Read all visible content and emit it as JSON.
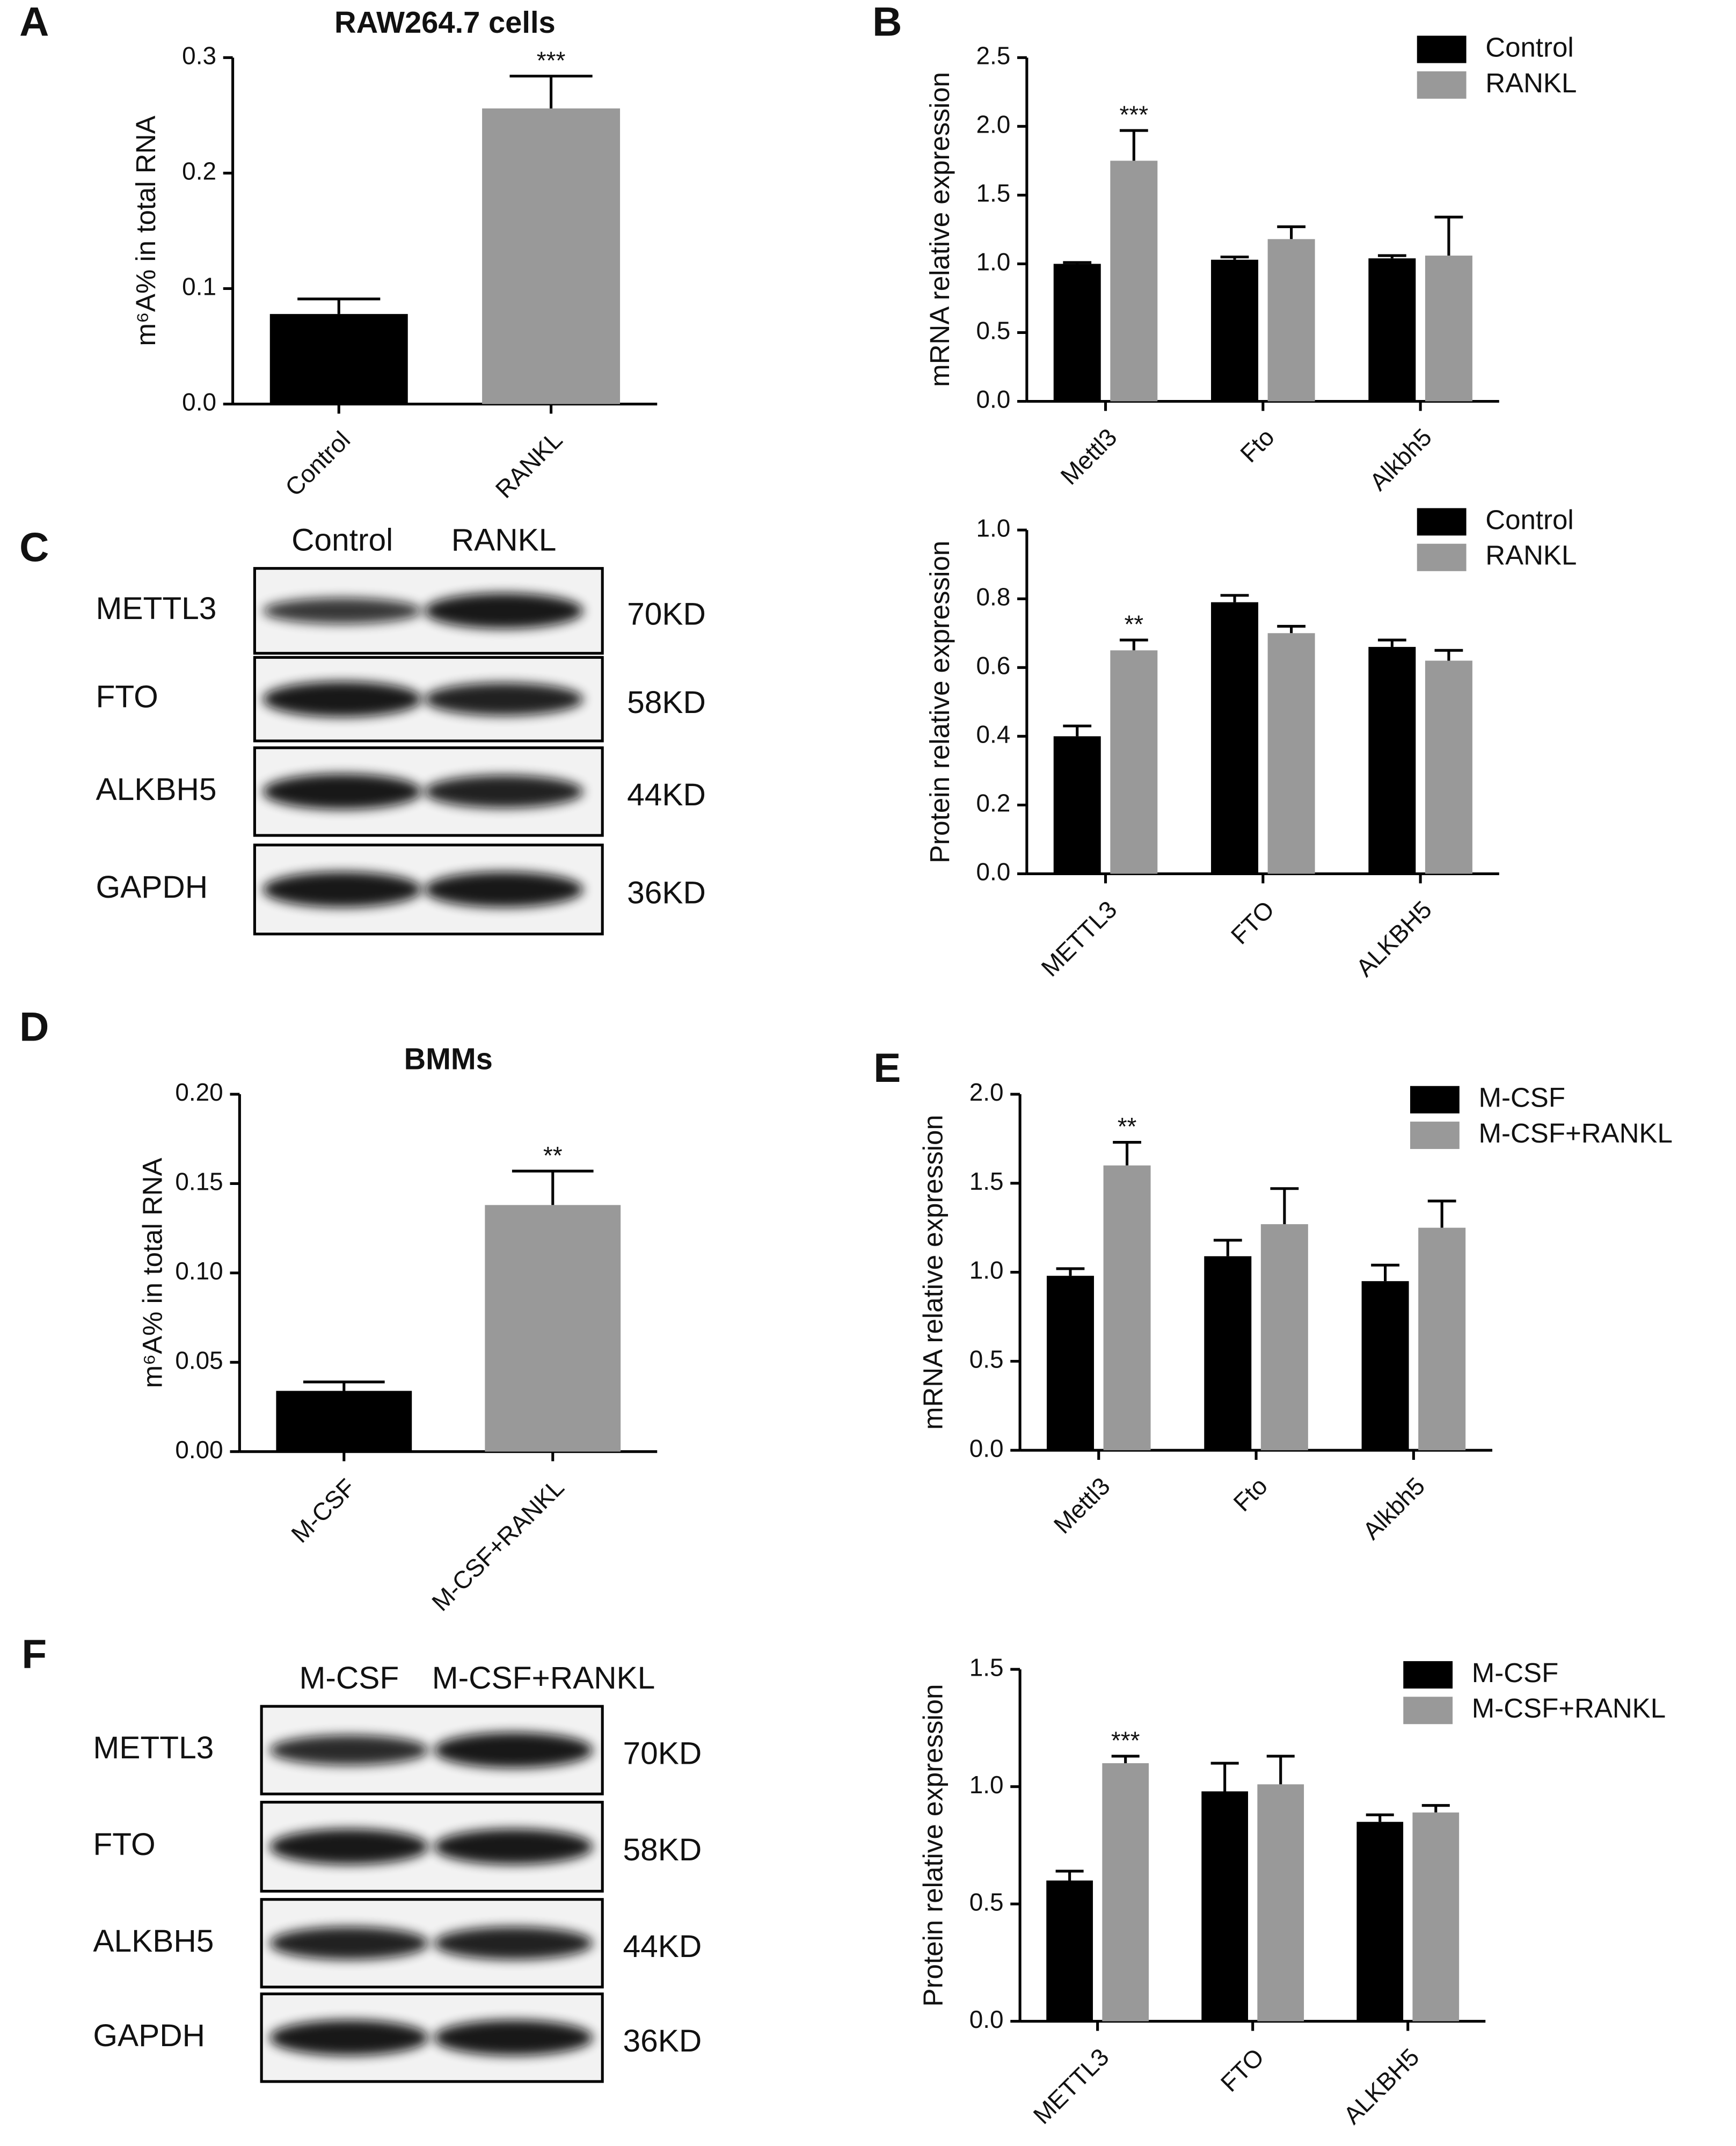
{
  "panels": [
    "A",
    "B",
    "C",
    "D",
    "E",
    "F"
  ],
  "chart_data": [
    {
      "type": "bar",
      "title": "RAW264.7 cells",
      "y_label": "m⁶A% in total RNA",
      "categories": [
        "Control",
        "RANKL"
      ],
      "series": [
        {
          "name": "RAW264.7 cells",
          "colors": [
            "#000000",
            "#999999"
          ],
          "values": [
            0.078,
            0.256
          ],
          "errors": [
            0.013,
            0.028
          ],
          "significance": [
            null,
            "***"
          ]
        }
      ],
      "ylim": [
        0,
        0.3
      ],
      "yticks": [
        {
          "value": 0,
          "label": "0.0"
        },
        0.1,
        0.2,
        0.3
      ],
      "legend": false
    },
    {
      "type": "bar",
      "y_label": "mRNA relative expression",
      "categories": [
        "Mettl3",
        "Fto",
        "Alkbh5"
      ],
      "series": [
        {
          "name": "Control",
          "color": "#000000",
          "values": [
            1.0,
            1.03,
            1.04
          ],
          "errors": [
            0.01,
            0.02,
            0.02
          ],
          "significance": [
            null,
            null,
            null
          ]
        },
        {
          "name": "RANKL",
          "color": "#999999",
          "values": [
            1.75,
            1.18,
            1.06
          ],
          "errors": [
            0.22,
            0.09,
            0.28
          ],
          "significance": [
            "***",
            null,
            null
          ]
        }
      ],
      "ylim": [
        0,
        2.5
      ],
      "yticks": [
        {
          "value": 0,
          "label": "0.0"
        },
        0.5,
        {
          "value": 1,
          "label": "1.0"
        },
        1.5,
        {
          "value": 2,
          "label": "2.0"
        },
        2.5
      ],
      "legend": "top-right"
    },
    {
      "type": "bar",
      "y_label": "Protein relative expression",
      "categories": [
        "METTL3",
        "FTO",
        "ALKBH5"
      ],
      "series": [
        {
          "name": "Control",
          "color": "#000000",
          "values": [
            0.4,
            0.79,
            0.66
          ],
          "errors": [
            0.03,
            0.02,
            0.02
          ],
          "significance": [
            null,
            null,
            null
          ]
        },
        {
          "name": "RANKL",
          "color": "#999999",
          "values": [
            0.65,
            0.7,
            0.62
          ],
          "errors": [
            0.03,
            0.02,
            0.03
          ],
          "significance": [
            "**",
            null,
            null
          ]
        }
      ],
      "ylim": [
        0,
        1
      ],
      "yticks": [
        {
          "value": 0,
          "label": "0.0"
        },
        0.2,
        0.4,
        0.6,
        0.8,
        {
          "value": 1,
          "label": "1.0"
        }
      ],
      "legend": "top-right"
    },
    {
      "type": "bar",
      "title": "BMMs",
      "y_label": "m⁶A% in total RNA",
      "categories": [
        "M-CSF",
        "M-CSF+RANKL"
      ],
      "series": [
        {
          "name": "BMMs",
          "colors": [
            "#000000",
            "#999999"
          ],
          "values": [
            0.034,
            0.138
          ],
          "errors": [
            0.005,
            0.019
          ],
          "significance": [
            null,
            "**"
          ]
        }
      ],
      "ylim": [
        0,
        0.2
      ],
      "yticks": [
        {
          "value": 0,
          "label": "0.00"
        },
        {
          "value": 0.05,
          "label": "0.05"
        },
        {
          "value": 0.1,
          "label": "0.10"
        },
        {
          "value": 0.15,
          "label": "0.15"
        },
        {
          "value": 0.2,
          "label": "0.20"
        }
      ],
      "legend": false
    },
    {
      "type": "bar",
      "y_label": "mRNA relative expression",
      "categories": [
        "Mettl3",
        "Fto",
        "Alkbh5"
      ],
      "series": [
        {
          "name": "M-CSF",
          "color": "#000000",
          "values": [
            0.98,
            1.09,
            0.95
          ],
          "errors": [
            0.04,
            0.09,
            0.09
          ],
          "significance": [
            null,
            null,
            null
          ]
        },
        {
          "name": "M-CSF+RANKL",
          "color": "#999999",
          "values": [
            1.6,
            1.27,
            1.25
          ],
          "errors": [
            0.13,
            0.2,
            0.15
          ],
          "significance": [
            "**",
            null,
            null
          ]
        }
      ],
      "ylim": [
        0,
        2
      ],
      "yticks": [
        {
          "value": 0,
          "label": "0.0"
        },
        0.5,
        {
          "value": 1,
          "label": "1.0"
        },
        1.5,
        {
          "value": 2,
          "label": "2.0"
        }
      ],
      "legend": "top-right"
    },
    {
      "type": "bar",
      "y_label": "Protein relative expression",
      "categories": [
        "METTL3",
        "FTO",
        "ALKBH5"
      ],
      "series": [
        {
          "name": "M-CSF",
          "color": "#000000",
          "values": [
            0.6,
            0.98,
            0.85
          ],
          "errors": [
            0.04,
            0.12,
            0.03
          ],
          "significance": [
            null,
            null,
            null
          ]
        },
        {
          "name": "M-CSF+RANKL",
          "color": "#999999",
          "values": [
            1.1,
            1.01,
            0.89
          ],
          "errors": [
            0.03,
            0.12,
            0.03
          ],
          "significance": [
            "***",
            null,
            null
          ]
        }
      ],
      "ylim": [
        0,
        1.5
      ],
      "yticks": [
        {
          "value": 0,
          "label": "0.0"
        },
        0.5,
        {
          "value": 1,
          "label": "1.0"
        },
        1.5
      ],
      "legend": "top-right"
    }
  ],
  "blots": [
    {
      "columns": [
        "Control",
        "RANKL"
      ],
      "rows": [
        {
          "protein": "METTL3",
          "size": "70KD"
        },
        {
          "protein": "FTO",
          "size": "58KD"
        },
        {
          "protein": "ALKBH5",
          "size": "44KD"
        },
        {
          "protein": "GAPDH",
          "size": "36KD"
        }
      ]
    },
    {
      "columns": [
        "M-CSF",
        "M-CSF+RANKL"
      ],
      "rows": [
        {
          "protein": "METTL3",
          "size": "70KD"
        },
        {
          "protein": "FTO",
          "size": "58KD"
        },
        {
          "protein": "ALKBH5",
          "size": "44KD"
        },
        {
          "protein": "GAPDH",
          "size": "36KD"
        }
      ]
    }
  ]
}
